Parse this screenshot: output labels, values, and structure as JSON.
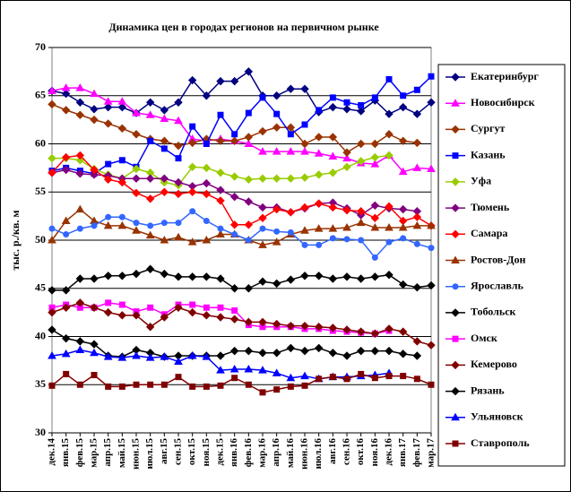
{
  "chart_data": {
    "type": "line",
    "title": "Динамика цен в городах регионов на первичном рынке",
    "y_label": "тыс. р./кв. м",
    "categories": [
      "дек.14",
      "янв.15",
      "фев.15",
      "мар.15",
      "апр.15",
      "май.15",
      "июн.15",
      "июл.15",
      "авг.15",
      "сен.15",
      "окт.15",
      "ноя.15",
      "дек.15",
      "янв.16",
      "фев.16",
      "мар.16",
      "апр.16",
      "май.16",
      "июн.16",
      "июл.16",
      "авг.16",
      "сен.16",
      "окт.16",
      "ноя.16",
      "дек.16",
      "янв.17",
      "фев.17",
      "мар.17"
    ],
    "ylim": [
      30,
      70
    ],
    "yticks": [
      30,
      35,
      40,
      45,
      50,
      55,
      60,
      65,
      70
    ],
    "grid": true,
    "legend": "right",
    "series": [
      {
        "name": "Екатеринбург",
        "color": "#000080",
        "marker": "diamond",
        "values": [
          65.5,
          65.2,
          64.3,
          63.6,
          63.8,
          63.8,
          63.2,
          64.3,
          63.5,
          64.3,
          66.6,
          65.0,
          66.5,
          66.5,
          67.5,
          65.0,
          65.0,
          65.7,
          65.7,
          63.3,
          63.8,
          63.6,
          63.4,
          64.5,
          63.1,
          63.8,
          63.1,
          64.3
        ]
      },
      {
        "name": "Новосибирск",
        "color": "#ff00ff",
        "marker": "triangle",
        "values": [
          65.5,
          65.8,
          65.8,
          65.2,
          64.4,
          64.4,
          63.2,
          63.0,
          62.6,
          62.4,
          60.5,
          60.3,
          60.5,
          60.3,
          60.0,
          59.2,
          59.2,
          59.2,
          59.2,
          59.0,
          58.7,
          58.5,
          58.0,
          57.9,
          58.8,
          57.1,
          57.5,
          57.4
        ]
      },
      {
        "name": "Сургут",
        "color": "#993300",
        "marker": "diamond",
        "values": [
          64.1,
          63.5,
          63.0,
          62.5,
          62.1,
          61.6,
          61.0,
          60.5,
          60.3,
          59.8,
          60.1,
          60.5,
          60.3,
          60.3,
          60.7,
          61.3,
          61.7,
          61.7,
          60.0,
          60.7,
          60.7,
          59.1,
          60.0,
          60.0,
          61.0,
          60.3,
          60.1,
          null
        ]
      },
      {
        "name": "Казань",
        "color": "#0000ff",
        "marker": "square",
        "values": [
          57.2,
          57.5,
          57.2,
          56.9,
          57.9,
          58.3,
          57.6,
          60.3,
          59.5,
          58.5,
          61.8,
          60.0,
          63.0,
          61.0,
          63.2,
          64.8,
          63.1,
          61.0,
          62.0,
          63.5,
          64.8,
          64.3,
          64.0,
          64.8,
          66.7,
          65.0,
          65.6,
          67.0
        ]
      },
      {
        "name": "Уфа",
        "color": "#99cc00",
        "marker": "diamond",
        "values": [
          58.5,
          58.5,
          58.3,
          57.4,
          56.8,
          56.4,
          57.4,
          57.0,
          56.0,
          55.7,
          57.6,
          57.5,
          57.0,
          56.6,
          56.3,
          56.4,
          56.4,
          56.4,
          56.5,
          56.8,
          57.0,
          57.6,
          58.2,
          58.6,
          58.8,
          null,
          null,
          null
        ]
      },
      {
        "name": "Тюмень",
        "color": "#800080",
        "marker": "diamond",
        "values": [
          57.0,
          57.3,
          56.9,
          56.8,
          56.7,
          56.4,
          56.4,
          56.4,
          56.4,
          56.0,
          55.6,
          55.9,
          55.2,
          54.5,
          54.0,
          53.4,
          53.4,
          52.9,
          53.3,
          53.8,
          53.9,
          53.3,
          52.6,
          53.6,
          53.3,
          53.2,
          53.0,
          null
        ]
      },
      {
        "name": "Самара",
        "color": "#ff0000",
        "marker": "diamond",
        "values": [
          57.0,
          58.6,
          58.8,
          57.3,
          56.3,
          56.0,
          54.9,
          54.3,
          55.0,
          54.8,
          55.0,
          54.8,
          54.1,
          51.6,
          51.6,
          52.3,
          53.2,
          52.9,
          53.4,
          53.8,
          53.4,
          53.1,
          53.0,
          52.3,
          53.5,
          52.0,
          52.4,
          51.5
        ]
      },
      {
        "name": "Ростов-Дон",
        "color": "#993300",
        "marker": "triangle",
        "values": [
          50.0,
          52.0,
          53.2,
          52.0,
          51.5,
          51.5,
          51.0,
          50.5,
          50.0,
          50.3,
          49.8,
          50.0,
          50.6,
          50.6,
          50.0,
          49.5,
          49.8,
          50.6,
          51.0,
          51.2,
          51.2,
          51.3,
          51.8,
          51.3,
          51.3,
          51.3,
          51.5,
          51.5
        ]
      },
      {
        "name": "Ярославль",
        "color": "#3366ff",
        "marker": "circle",
        "values": [
          51.2,
          50.6,
          51.2,
          51.5,
          52.4,
          52.4,
          51.8,
          51.5,
          51.8,
          51.8,
          53.0,
          52.0,
          51.2,
          50.6,
          50.0,
          51.2,
          50.9,
          50.8,
          49.5,
          49.5,
          50.2,
          50.1,
          50.0,
          48.2,
          49.8,
          50.2,
          49.6,
          49.2
        ]
      },
      {
        "name": "Тобольск",
        "color": "#000000",
        "marker": "diamond",
        "values": [
          44.8,
          44.8,
          46.0,
          46.0,
          46.3,
          46.3,
          46.5,
          47.0,
          46.5,
          46.2,
          46.2,
          46.2,
          46.0,
          45.0,
          45.0,
          45.7,
          45.5,
          45.9,
          46.3,
          46.3,
          46.0,
          46.2,
          46.0,
          46.2,
          46.4,
          45.4,
          45.1,
          45.3
        ]
      },
      {
        "name": "Омск",
        "color": "#ff00ff",
        "marker": "square",
        "values": [
          43.0,
          43.3,
          43.0,
          43.0,
          43.5,
          43.3,
          42.6,
          43.0,
          42.3,
          43.3,
          43.3,
          43.0,
          43.0,
          42.7,
          41.2,
          41.0,
          41.0,
          41.0,
          40.8,
          40.8,
          40.6,
          40.5,
          40.4,
          40.3,
          40.6,
          null,
          null,
          null
        ]
      },
      {
        "name": "Кемерово",
        "color": "#800000",
        "marker": "diamond",
        "values": [
          42.5,
          43.0,
          43.5,
          43.0,
          42.5,
          42.2,
          42.2,
          41.0,
          42.0,
          43.0,
          42.5,
          42.2,
          42.0,
          41.8,
          41.5,
          41.5,
          41.3,
          41.1,
          41.1,
          41.0,
          40.9,
          40.7,
          40.5,
          40.3,
          40.8,
          40.5,
          39.5,
          39.1
        ]
      },
      {
        "name": "Рязань",
        "color": "#000000",
        "marker": "diamond",
        "values": [
          40.7,
          39.8,
          39.5,
          39.2,
          38.0,
          37.9,
          38.6,
          38.3,
          37.9,
          38.0,
          38.0,
          38.0,
          38.0,
          38.5,
          38.5,
          38.3,
          38.3,
          38.8,
          38.5,
          38.8,
          38.3,
          38.0,
          38.5,
          38.5,
          38.5,
          38.2,
          38.0,
          null
        ]
      },
      {
        "name": "Ульяновск",
        "color": "#0000ff",
        "marker": "triangle",
        "values": [
          38.0,
          38.2,
          38.6,
          38.3,
          37.9,
          37.8,
          38.0,
          37.8,
          37.9,
          37.4,
          38.0,
          37.9,
          36.5,
          36.6,
          36.6,
          36.5,
          36.2,
          35.7,
          35.9,
          35.6,
          35.8,
          35.8,
          35.9,
          36.0,
          36.2,
          null,
          null,
          null
        ]
      },
      {
        "name": "Ставрополь",
        "color": "#800000",
        "marker": "square",
        "values": [
          34.9,
          36.1,
          35.0,
          36.0,
          34.8,
          34.8,
          35.0,
          35.0,
          35.0,
          35.8,
          34.8,
          34.8,
          34.9,
          35.7,
          35.0,
          34.2,
          34.5,
          34.8,
          34.9,
          35.6,
          35.8,
          35.6,
          36.1,
          35.7,
          35.9,
          35.9,
          35.6,
          35.0
        ]
      }
    ]
  }
}
